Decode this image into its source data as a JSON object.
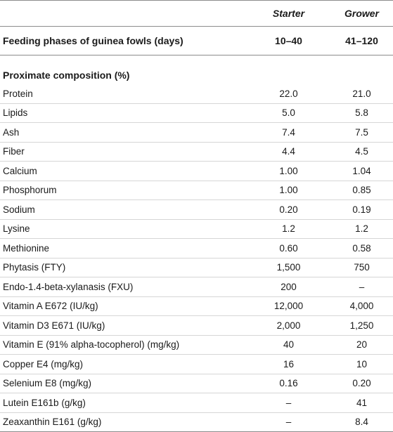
{
  "header": {
    "col1_blank": "",
    "starter_label": "Starter",
    "grower_label": "Grower",
    "phase_label": "Feeding phases of guinea fowls (days)",
    "starter_days": "10–40",
    "grower_days": "41–120"
  },
  "section_title": "Proximate composition (%)",
  "rows": [
    {
      "name": "Protein",
      "starter": "22.0",
      "grower": "21.0"
    },
    {
      "name": "Lipids",
      "starter": "5.0",
      "grower": "5.8"
    },
    {
      "name": "Ash",
      "starter": "7.4",
      "grower": "7.5"
    },
    {
      "name": "Fiber",
      "starter": "4.4",
      "grower": "4.5"
    },
    {
      "name": "Calcium",
      "starter": "1.00",
      "grower": "1.04"
    },
    {
      "name": "Phosphorum",
      "starter": "1.00",
      "grower": "0.85"
    },
    {
      "name": "Sodium",
      "starter": "0.20",
      "grower": "0.19"
    },
    {
      "name": "Lysine",
      "starter": "1.2",
      "grower": "1.2"
    },
    {
      "name": "Methionine",
      "starter": "0.60",
      "grower": "0.58"
    },
    {
      "name": "Phytasis (FTY)",
      "starter": "1,500",
      "grower": "750"
    },
    {
      "name": "Endo-1.4-beta-xylanasis (FXU)",
      "starter": "200",
      "grower": "–"
    },
    {
      "name": "Vitamin A E672 (IU/kg)",
      "starter": "12,000",
      "grower": "4,000"
    },
    {
      "name": "Vitamin D3 E671 (IU/kg)",
      "starter": "2,000",
      "grower": "1,250"
    },
    {
      "name": "Vitamin E (91% alpha-tocopherol) (mg/kg)",
      "starter": "40",
      "grower": "20"
    },
    {
      "name": "Copper E4 (mg/kg)",
      "starter": "16",
      "grower": "10"
    },
    {
      "name": "Selenium E8 (mg/kg)",
      "starter": "0.16",
      "grower": "0.20"
    },
    {
      "name": "Lutein E161b (g/kg)",
      "starter": "–",
      "grower": "41"
    },
    {
      "name": "Zeaxanthin E161 (g/kg)",
      "starter": "–",
      "grower": "8.4"
    }
  ]
}
